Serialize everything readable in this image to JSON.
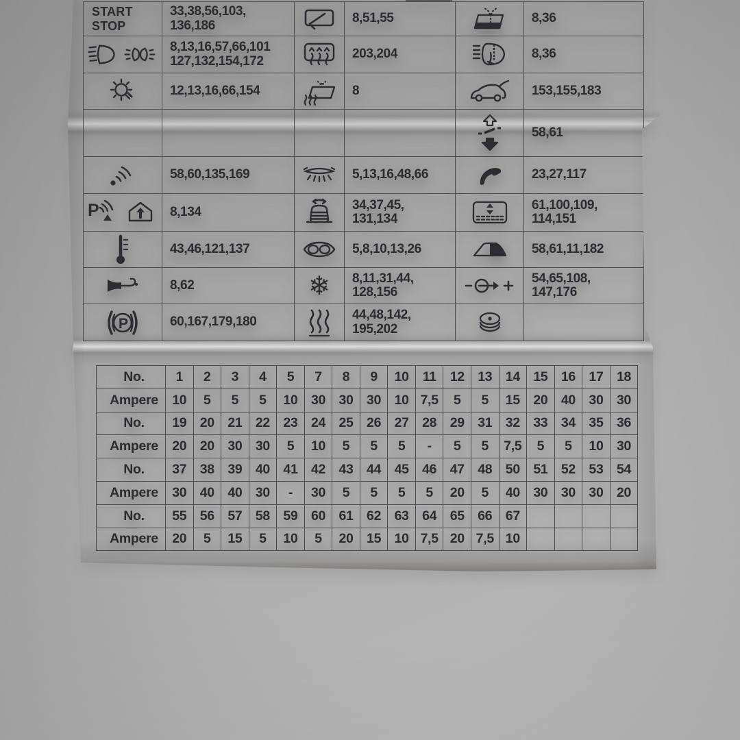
{
  "colors": {
    "background": "#a8a8a8",
    "paper": "#edeae8",
    "table_border": "#4c4b54",
    "text": "#2c2b31"
  },
  "icon_table": {
    "rows": [
      [
        {
          "label": "START\nSTOP"
        },
        {
          "nums": "33,38,56,103,\n136,186"
        },
        {
          "icon": "windshield-wiper-icon"
        },
        {
          "nums": "8,51,55"
        },
        {
          "icon": "windshield-washer-icon"
        },
        {
          "nums": "8,36"
        }
      ],
      [
        {
          "icons": [
            "low-beam-headlight-icon",
            "position-lights-icon"
          ]
        },
        {
          "nums": "8,13,16,57,66,101\n127,132,154,172"
        },
        {
          "icon": "rear-window-defrost-icon"
        },
        {
          "nums": "203,204"
        },
        {
          "icon": "headlight-washer-icon"
        },
        {
          "nums": "8,36"
        }
      ],
      [
        {
          "icon": "light-bulb-icon"
        },
        {
          "nums": "12,13,16,66,154"
        },
        {
          "icon": "heated-washer-jets-icon"
        },
        {
          "nums": "8"
        },
        {
          "icon": "tailgate-icon"
        },
        {
          "nums": "153,155,183"
        }
      ],
      [
        {},
        {
          "nums": ""
        },
        {},
        {
          "nums": ""
        },
        {
          "icon": "sunroof-tilt-icon"
        },
        {
          "nums": "58,61"
        }
      ],
      [
        {
          "icon": "antenna-signal-icon"
        },
        {
          "nums": "58,60,135,169"
        },
        {
          "icon": "interior-light-icon"
        },
        {
          "nums": "5,13,16,48,66"
        },
        {
          "icon": "phone-icon"
        },
        {
          "nums": "23,27,117"
        }
      ],
      [
        {
          "icon": "park-assist-garage-icon"
        },
        {
          "nums": "8,134"
        },
        {
          "icon": "car-level-icon"
        },
        {
          "nums": "34,37,45,\n131,134"
        },
        {
          "icon": "power-window-icon"
        },
        {
          "nums": "61,100,109,\n114,151"
        }
      ],
      [
        {
          "icon": "thermometer-icon"
        },
        {
          "nums": "43,46,121,137"
        },
        {
          "icon": "mirror-icon"
        },
        {
          "nums": "5,8,10,13,26"
        },
        {
          "icon": "convertible-top-icon"
        },
        {
          "nums": "58,61,11,182"
        }
      ],
      [
        {
          "icon": "horn-icon"
        },
        {
          "nums": "8,62"
        },
        {
          "icon": "snowflake-icon"
        },
        {
          "nums": "8,11,31,44,\n128,156"
        },
        {
          "icon": "power-socket-icon"
        },
        {
          "nums": "54,65,108,\n147,176"
        }
      ],
      [
        {
          "icon": "parking-brake-icon"
        },
        {
          "nums": "60,167,179,180"
        },
        {
          "icon": "seat-heating-icon"
        },
        {
          "nums": "44,48,142,\n195,202"
        },
        {
          "icon": "cigarette-lighter-icon"
        },
        {
          "nums": ""
        }
      ]
    ]
  },
  "amp_table": {
    "rows": [
      {
        "label": "No.",
        "values": [
          "1",
          "2",
          "3",
          "4",
          "5",
          "7",
          "8",
          "9",
          "10",
          "11",
          "12",
          "13",
          "14",
          "15",
          "16",
          "17",
          "18"
        ]
      },
      {
        "label": "Ampere",
        "values": [
          "10",
          "5",
          "5",
          "5",
          "10",
          "30",
          "30",
          "30",
          "10",
          "7,5",
          "5",
          "5",
          "15",
          "20",
          "40",
          "30",
          "30"
        ]
      },
      {
        "label": "No.",
        "values": [
          "19",
          "20",
          "21",
          "22",
          "23",
          "24",
          "25",
          "26",
          "27",
          "28",
          "29",
          "31",
          "32",
          "33",
          "34",
          "35",
          "36"
        ]
      },
      {
        "label": "Ampere",
        "values": [
          "20",
          "20",
          "30",
          "30",
          "5",
          "10",
          "5",
          "5",
          "5",
          "-",
          "5",
          "5",
          "7,5",
          "5",
          "5",
          "10",
          "30"
        ]
      },
      {
        "label": "No.",
        "values": [
          "37",
          "38",
          "39",
          "40",
          "41",
          "42",
          "43",
          "44",
          "45",
          "46",
          "47",
          "48",
          "50",
          "51",
          "52",
          "53",
          "54"
        ]
      },
      {
        "label": "Ampere",
        "values": [
          "30",
          "40",
          "40",
          "30",
          "-",
          "30",
          "5",
          "5",
          "5",
          "5",
          "20",
          "5",
          "40",
          "30",
          "30",
          "30",
          "20"
        ]
      },
      {
        "label": "No.",
        "values": [
          "55",
          "56",
          "57",
          "58",
          "59",
          "60",
          "61",
          "62",
          "63",
          "64",
          "65",
          "66",
          "67",
          "",
          "",
          "",
          ""
        ]
      },
      {
        "label": "Ampere",
        "values": [
          "20",
          "5",
          "15",
          "5",
          "10",
          "5",
          "20",
          "15",
          "10",
          "7,5",
          "20",
          "7,5",
          "10",
          "",
          "",
          "",
          ""
        ]
      }
    ]
  }
}
